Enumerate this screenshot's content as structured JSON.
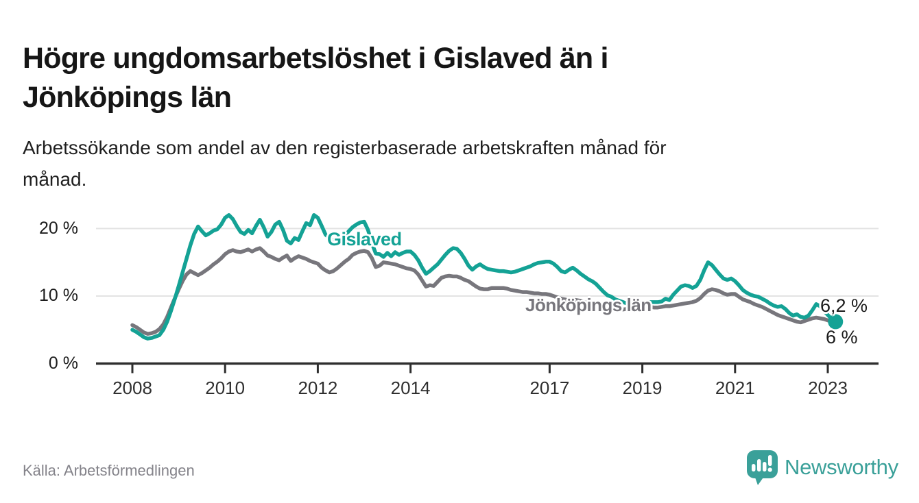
{
  "header": {
    "title_lines": [
      "Högre ungdomsarbetslöshet i Gislaved än i",
      "Jönköpings län"
    ],
    "subtitle_lines": [
      "Arbetssökande som andel av den registerbaserade arbetskraften månad för",
      "månad."
    ]
  },
  "chart_data": {
    "type": "line",
    "unit": "%",
    "frequency": "monthly",
    "x_start": "2008-01",
    "x_end": "2023-03",
    "ylim": [
      0,
      23
    ],
    "grid": "horizontal",
    "legend_position": "inline-labels",
    "x_ticks": [
      2008,
      2010,
      2012,
      2014,
      2017,
      2019,
      2021,
      2023
    ],
    "x_tick_labels": [
      "2008",
      "2010",
      "2012",
      "2014",
      "2017",
      "2019",
      "2021",
      "2023"
    ],
    "y_ticks": [
      0,
      10,
      20
    ],
    "y_tick_labels": [
      "0 %",
      "10 %",
      "20 %"
    ],
    "series": [
      {
        "name": "Gislaved",
        "color": "#14a295",
        "end_label": "6,2 %",
        "end_value": 6.2,
        "values": [
          5.0,
          4.7,
          4.3,
          3.9,
          3.7,
          3.8,
          4.0,
          4.2,
          5.0,
          6.2,
          7.8,
          9.6,
          11.5,
          13.5,
          15.5,
          17.5,
          19.2,
          20.3,
          19.6,
          19.0,
          19.3,
          19.7,
          19.9,
          20.6,
          21.6,
          22.0,
          21.4,
          20.4,
          19.5,
          19.2,
          19.8,
          19.3,
          20.4,
          21.3,
          20.2,
          18.8,
          19.5,
          20.6,
          21.0,
          19.8,
          18.2,
          17.8,
          18.6,
          18.3,
          19.6,
          20.8,
          20.5,
          22.0,
          21.6,
          20.4,
          19.1,
          18.6,
          18.2,
          18.1,
          18.7,
          18.9,
          19.6,
          20.2,
          20.6,
          20.9,
          21.0,
          19.8,
          17.8,
          16.3,
          16.2,
          15.8,
          16.4,
          15.9,
          16.5,
          16.1,
          16.4,
          16.6,
          16.6,
          16.1,
          15.3,
          14.2,
          13.3,
          13.7,
          14.2,
          14.7,
          15.4,
          16.1,
          16.7,
          17.1,
          17.0,
          16.4,
          15.5,
          14.5,
          13.9,
          14.4,
          14.7,
          14.3,
          14.0,
          13.9,
          13.8,
          13.7,
          13.7,
          13.6,
          13.5,
          13.6,
          13.8,
          14.0,
          14.2,
          14.4,
          14.7,
          14.9,
          15.0,
          15.1,
          15.1,
          14.8,
          14.3,
          13.7,
          13.5,
          13.9,
          14.2,
          13.8,
          13.3,
          12.9,
          12.5,
          12.2,
          11.8,
          11.2,
          10.6,
          10.1,
          9.9,
          9.5,
          9.3,
          9.1,
          8.9,
          8.8,
          8.8,
          8.9,
          9.0,
          9.0,
          9.1,
          9.1,
          9.1,
          9.2,
          9.6,
          9.4,
          10.2,
          10.8,
          11.4,
          11.6,
          11.5,
          11.2,
          11.5,
          12.4,
          13.8,
          15.0,
          14.6,
          13.9,
          13.2,
          12.6,
          12.4,
          12.6,
          12.2,
          11.6,
          10.9,
          10.5,
          10.2,
          10.0,
          9.9,
          9.6,
          9.3,
          8.9,
          8.6,
          8.4,
          8.5,
          8.1,
          7.5,
          7.1,
          7.3,
          6.9,
          6.8,
          7.1,
          7.9,
          8.8,
          8.5,
          7.8,
          7.2,
          6.6,
          6.2
        ]
      },
      {
        "name": "Jönköpings län",
        "color": "#77767c",
        "end_label": "6 %",
        "end_value": 6.0,
        "values": [
          5.7,
          5.4,
          5.0,
          4.6,
          4.4,
          4.5,
          4.7,
          5.1,
          5.8,
          6.9,
          8.3,
          9.7,
          11.0,
          12.2,
          13.2,
          13.7,
          13.4,
          13.1,
          13.4,
          13.8,
          14.2,
          14.7,
          15.1,
          15.6,
          16.2,
          16.6,
          16.8,
          16.6,
          16.5,
          16.7,
          16.9,
          16.6,
          16.9,
          17.1,
          16.6,
          16.0,
          15.8,
          15.5,
          15.3,
          15.7,
          16.0,
          15.2,
          15.6,
          15.9,
          15.7,
          15.5,
          15.2,
          15.0,
          14.8,
          14.2,
          13.8,
          13.5,
          13.7,
          14.1,
          14.6,
          15.1,
          15.5,
          16.1,
          16.4,
          16.6,
          16.7,
          16.5,
          15.6,
          14.3,
          14.5,
          15.0,
          14.9,
          14.8,
          14.7,
          14.5,
          14.3,
          14.1,
          14.0,
          13.8,
          13.2,
          12.3,
          11.4,
          11.6,
          11.5,
          12.1,
          12.7,
          12.9,
          13.0,
          12.9,
          12.9,
          12.7,
          12.4,
          12.2,
          11.8,
          11.4,
          11.1,
          11.0,
          11.0,
          11.2,
          11.2,
          11.2,
          11.2,
          11.1,
          10.9,
          10.8,
          10.7,
          10.6,
          10.6,
          10.5,
          10.4,
          10.4,
          10.3,
          10.3,
          10.2,
          10.0,
          9.8,
          9.6,
          9.5,
          9.4,
          9.5,
          9.4,
          9.3,
          9.1,
          9.0,
          8.9,
          8.8,
          8.6,
          8.4,
          8.2,
          8.1,
          8.0,
          8.1,
          8.0,
          8.1,
          8.2,
          8.3,
          8.4,
          8.5,
          8.5,
          8.4,
          8.3,
          8.3,
          8.4,
          8.5,
          8.5,
          8.6,
          8.7,
          8.8,
          8.9,
          9.0,
          9.1,
          9.3,
          9.7,
          10.3,
          10.8,
          11.0,
          10.9,
          10.7,
          10.4,
          10.2,
          10.3,
          10.3,
          9.9,
          9.5,
          9.3,
          9.1,
          8.8,
          8.6,
          8.4,
          8.1,
          7.8,
          7.5,
          7.2,
          7.0,
          6.8,
          6.6,
          6.4,
          6.2,
          6.1,
          6.3,
          6.5,
          6.7,
          6.8,
          6.7,
          6.6,
          6.4,
          6.2,
          6.0
        ]
      }
    ]
  },
  "annotations": {
    "gislaved_label": "Gislaved",
    "jonkoping_label": "Jönköpings län",
    "gislaved_end_label": "6,2 %",
    "jonkoping_end_label": "6 %"
  },
  "footer": {
    "source": "Källa: Arbetsförmedlingen",
    "brand": "Newsworthy"
  },
  "colors": {
    "gislaved_line": "#14a295",
    "jonkoping_line": "#77767c",
    "gridline": "#e3e3e3",
    "axis": "#2e2e2e",
    "brand_teal": "#3aa099",
    "background": "#ffffff"
  }
}
